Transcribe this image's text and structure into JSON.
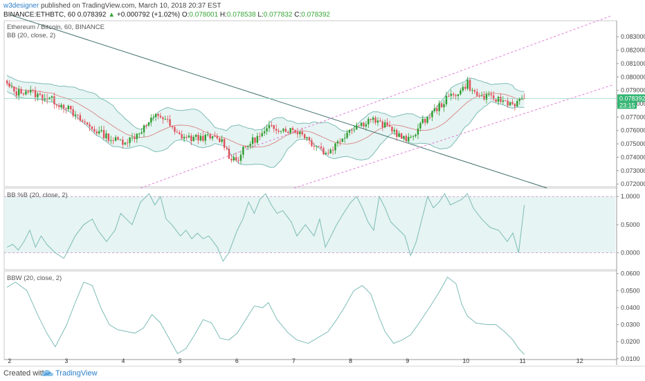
{
  "header": {
    "author": "w3designer",
    "published": "published on TradingView.com, March 10, 2018 20:37 EST",
    "symbol": "BINANCE:ETHBTC, 60",
    "close_val": "0.078392",
    "change_arrow": "▲",
    "change": "+0.000792 (+1.02%)",
    "o_label": "O:",
    "o_val": "0.078001",
    "h_label": "H:",
    "h_val": "0.078538",
    "l_label": "L:",
    "l_val": "0.077832",
    "c_label": "C:",
    "c_val": "0.078392"
  },
  "footer": {
    "created": "Created with",
    "brand": "TradingView"
  },
  "colors": {
    "up": "#2e9b2e",
    "down": "#e0505a",
    "band_fill": "#e6f4f3",
    "band_line": "#7cbcb6",
    "trendline": "#3f6f6a",
    "channel": "#e07ad8",
    "price_tag": "#34b573"
  },
  "chart_data": [
    {
      "type": "candlestick",
      "title": "Ethereum / Bitcoin, 60, BINANCE",
      "indicator": "BB (20, close, 2)",
      "ylim": [
        0.0718,
        0.0842
      ],
      "yticks": [
        "0.083000",
        "0.082000",
        "0.081000",
        "0.080000",
        "0.079000",
        "0.078000",
        "0.077000",
        "0.076000",
        "0.075000",
        "0.074000",
        "0.073000",
        "0.072000"
      ],
      "ytick_values": [
        0.083,
        0.082,
        0.081,
        0.08,
        0.079,
        0.078,
        0.077,
        0.076,
        0.075,
        0.074,
        0.073,
        0.072
      ],
      "last_price_label": "0.078392",
      "countdown_label": "23:15",
      "last_price": 0.078392,
      "xlim": [
        1.9,
        12.65
      ],
      "xticks": [
        "2",
        "3",
        "4",
        "5",
        "6",
        "7",
        "8",
        "9",
        "10",
        "11",
        "12"
      ],
      "xtick_values": [
        2,
        3,
        4,
        5,
        6,
        7,
        8,
        9,
        10,
        11,
        12
      ],
      "close_anchors": [
        [
          1.95,
          0.0794
        ],
        [
          2.1,
          0.0788
        ],
        [
          2.3,
          0.079
        ],
        [
          2.5,
          0.0786
        ],
        [
          2.7,
          0.0784
        ],
        [
          2.85,
          0.078
        ],
        [
          3.0,
          0.0778
        ],
        [
          3.1,
          0.0772
        ],
        [
          3.3,
          0.0766
        ],
        [
          3.5,
          0.076
        ],
        [
          3.65,
          0.0757
        ],
        [
          3.8,
          0.0753
        ],
        [
          4.0,
          0.0752
        ],
        [
          4.15,
          0.0754
        ],
        [
          4.3,
          0.076
        ],
        [
          4.45,
          0.0766
        ],
        [
          4.6,
          0.0772
        ],
        [
          4.75,
          0.0768
        ],
        [
          4.9,
          0.0758
        ],
        [
          5.0,
          0.0756
        ],
        [
          5.2,
          0.0754
        ],
        [
          5.4,
          0.0755
        ],
        [
          5.6,
          0.0754
        ],
        [
          5.75,
          0.0752
        ],
        [
          5.85,
          0.0741
        ],
        [
          6.0,
          0.0738
        ],
        [
          6.1,
          0.0745
        ],
        [
          6.25,
          0.0752
        ],
        [
          6.45,
          0.0757
        ],
        [
          6.6,
          0.0763
        ],
        [
          6.8,
          0.0761
        ],
        [
          7.0,
          0.076
        ],
        [
          7.15,
          0.0758
        ],
        [
          7.3,
          0.0751
        ],
        [
          7.45,
          0.0748
        ],
        [
          7.55,
          0.0742
        ],
        [
          7.7,
          0.0748
        ],
        [
          7.85,
          0.0755
        ],
        [
          8.0,
          0.0762
        ],
        [
          8.2,
          0.0765
        ],
        [
          8.35,
          0.0769
        ],
        [
          8.5,
          0.0765
        ],
        [
          8.7,
          0.0762
        ],
        [
          8.85,
          0.0756
        ],
        [
          9.0,
          0.0752
        ],
        [
          9.15,
          0.076
        ],
        [
          9.3,
          0.0768
        ],
        [
          9.45,
          0.0774
        ],
        [
          9.6,
          0.078
        ],
        [
          9.75,
          0.0786
        ],
        [
          9.95,
          0.079
        ],
        [
          10.05,
          0.0796
        ],
        [
          10.15,
          0.0788
        ],
        [
          10.3,
          0.0785
        ],
        [
          10.5,
          0.0784
        ],
        [
          10.7,
          0.0782
        ],
        [
          10.85,
          0.078
        ],
        [
          10.95,
          0.0781
        ],
        [
          11.05,
          0.0784
        ]
      ]
    },
    {
      "type": "line",
      "title": "BB %B (20, close, 2)",
      "ylim": [
        -0.3,
        1.15
      ],
      "yticks": [
        "1.0000",
        "0.5000",
        "0.0000"
      ],
      "ytick_values": [
        1.0,
        0.5,
        0.0
      ],
      "band_range": [
        0.0,
        1.0
      ],
      "x": [
        1.95,
        2.05,
        2.15,
        2.25,
        2.35,
        2.45,
        2.55,
        2.65,
        2.8,
        2.95,
        3.05,
        3.15,
        3.3,
        3.45,
        3.55,
        3.7,
        3.85,
        3.95,
        4.05,
        4.15,
        4.3,
        4.45,
        4.55,
        4.65,
        4.75,
        4.85,
        5.0,
        5.1,
        5.2,
        5.3,
        5.4,
        5.5,
        5.65,
        5.75,
        5.85,
        6.0,
        6.1,
        6.2,
        6.3,
        6.4,
        6.5,
        6.6,
        6.7,
        6.8,
        6.95,
        7.05,
        7.2,
        7.35,
        7.45,
        7.55,
        7.65,
        7.75,
        7.9,
        8.0,
        8.1,
        8.2,
        8.3,
        8.4,
        8.5,
        8.6,
        8.7,
        8.8,
        8.95,
        9.05,
        9.15,
        9.25,
        9.35,
        9.45,
        9.55,
        9.65,
        9.75,
        9.85,
        9.95,
        10.05,
        10.15,
        10.3,
        10.45,
        10.6,
        10.75,
        10.85,
        10.95,
        11.05
      ],
      "values": [
        0.1,
        0.15,
        0.05,
        0.2,
        0.4,
        0.1,
        0.3,
        0.15,
        0.0,
        -0.1,
        0.1,
        0.3,
        0.5,
        0.6,
        0.4,
        0.2,
        0.4,
        0.7,
        0.6,
        0.5,
        0.9,
        1.05,
        0.85,
        1.0,
        0.6,
        0.5,
        0.3,
        0.4,
        0.25,
        0.35,
        0.25,
        0.3,
        0.1,
        -0.15,
        0.0,
        0.4,
        0.6,
        0.9,
        0.7,
        0.95,
        1.05,
        0.85,
        0.7,
        0.75,
        0.55,
        0.3,
        0.5,
        0.3,
        0.6,
        0.1,
        0.3,
        0.5,
        0.75,
        0.9,
        1.0,
        0.8,
        0.55,
        0.4,
        1.0,
        0.8,
        0.55,
        0.45,
        0.3,
        -0.05,
        0.2,
        0.6,
        1.0,
        0.8,
        0.9,
        1.05,
        0.85,
        0.9,
        0.95,
        1.05,
        0.8,
        0.6,
        0.45,
        0.4,
        0.2,
        0.35,
        0.0,
        0.85
      ]
    },
    {
      "type": "line",
      "title": "BBW (20, close, 2)",
      "ylim": [
        0.0095,
        0.0615
      ],
      "yticks": [
        "0.0600",
        "0.0500",
        "0.0400",
        "0.0300",
        "0.0200",
        "0.0100"
      ],
      "ytick_values": [
        0.06,
        0.05,
        0.04,
        0.03,
        0.02,
        0.01
      ],
      "x": [
        1.95,
        2.1,
        2.3,
        2.5,
        2.65,
        2.8,
        3.0,
        3.15,
        3.3,
        3.45,
        3.6,
        3.75,
        3.9,
        4.05,
        4.2,
        4.35,
        4.5,
        4.65,
        4.8,
        4.95,
        5.1,
        5.25,
        5.4,
        5.55,
        5.7,
        5.85,
        6.0,
        6.15,
        6.3,
        6.45,
        6.55,
        6.7,
        6.9,
        7.05,
        7.25,
        7.45,
        7.6,
        7.75,
        7.9,
        8.05,
        8.2,
        8.35,
        8.5,
        8.6,
        8.75,
        8.9,
        9.05,
        9.2,
        9.4,
        9.55,
        9.7,
        9.85,
        9.95,
        10.05,
        10.2,
        10.4,
        10.55,
        10.7,
        10.85,
        10.95,
        11.05
      ],
      "values": [
        0.052,
        0.055,
        0.05,
        0.035,
        0.025,
        0.017,
        0.03,
        0.043,
        0.055,
        0.053,
        0.04,
        0.03,
        0.027,
        0.026,
        0.025,
        0.028,
        0.036,
        0.031,
        0.022,
        0.013,
        0.016,
        0.024,
        0.033,
        0.031,
        0.022,
        0.021,
        0.025,
        0.033,
        0.041,
        0.04,
        0.043,
        0.033,
        0.025,
        0.021,
        0.019,
        0.023,
        0.026,
        0.033,
        0.041,
        0.05,
        0.053,
        0.048,
        0.034,
        0.026,
        0.019,
        0.021,
        0.024,
        0.031,
        0.041,
        0.049,
        0.058,
        0.054,
        0.042,
        0.035,
        0.031,
        0.03,
        0.03,
        0.026,
        0.021,
        0.016,
        0.0125
      ]
    }
  ]
}
